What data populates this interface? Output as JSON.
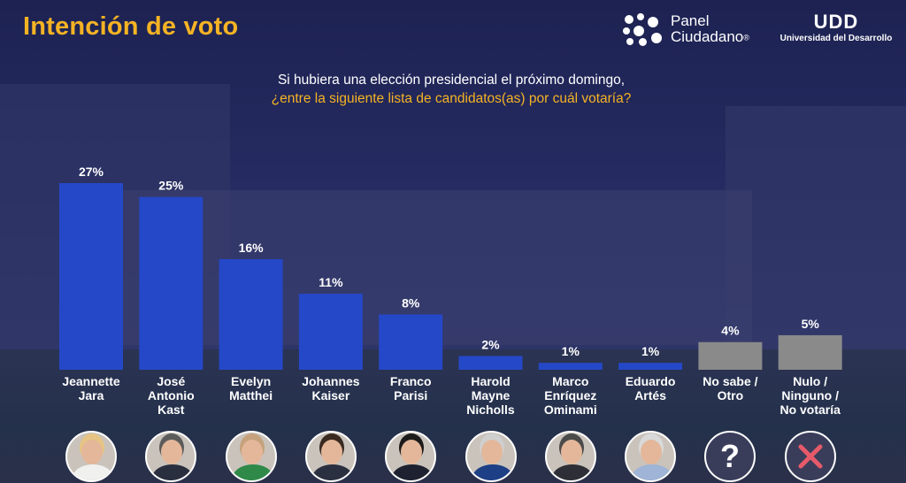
{
  "header": {
    "title": "Intención de voto",
    "panel_logo_line1": "Panel",
    "panel_logo_line2": "Ciudadano",
    "panel_logo_mark": "®",
    "udd_logo_mark": "UDD",
    "udd_logo_name": "Universidad del Desarrollo"
  },
  "question": {
    "line1": "Si hubiera una elección presidencial el próximo domingo,",
    "line2": "¿entre la siguiente lista de candidatos(as) por cuál votaría?"
  },
  "colors": {
    "title": "#f5b324",
    "bar_candidate": "#2548c8",
    "bar_other": "#8a8a8a",
    "question_highlight": "#f5b324"
  },
  "avatars": [
    {
      "name": "avatar-jeannette-jara",
      "icon": "person-photo",
      "shirt": "#f0f0ee",
      "hair": "#e6c483"
    },
    {
      "name": "avatar-jose-antonio-kast",
      "icon": "person-photo",
      "shirt": "#2a2f3f",
      "hair": "#5b5b5b"
    },
    {
      "name": "avatar-evelyn-matthei",
      "icon": "person-photo",
      "shirt": "#2f8a4a",
      "hair": "#c5a27d"
    },
    {
      "name": "avatar-johannes-kaiser",
      "icon": "person-photo",
      "shirt": "#2b3040",
      "hair": "#3a2a22"
    },
    {
      "name": "avatar-franco-parisi",
      "icon": "person-photo",
      "shirt": "#1e2230",
      "hair": "#1c1a1a"
    },
    {
      "name": "avatar-harold-mayne-nicholls",
      "icon": "person-photo",
      "shirt": "#1d3f86",
      "hair": "#cfcfcf"
    },
    {
      "name": "avatar-marco-enriquez-ominami",
      "icon": "person-photo",
      "shirt": "#2e2f36",
      "hair": "#4a4a4a"
    },
    {
      "name": "avatar-eduardo-artes",
      "icon": "person-photo",
      "shirt": "#9fb4d6",
      "hair": "#d9d9d9"
    },
    {
      "name": "question-mark-icon",
      "icon": "question-mark",
      "symbol": "?"
    },
    {
      "name": "x-mark-icon",
      "icon": "x-mark"
    }
  ],
  "chart_data": {
    "type": "bar",
    "title": "Intención de voto",
    "ylim": [
      0,
      27
    ],
    "grid": false,
    "categories": [
      "Jeannette Jara",
      "José Antonio Kast",
      "Evelyn Matthei",
      "Johannes Kaiser",
      "Franco Parisi",
      "Harold Mayne Nicholls",
      "Marco Enríquez Ominami",
      "Eduardo Artés",
      "No sabe / Otro",
      "Nulo / Ninguno / No votaría"
    ],
    "category_lines": [
      [
        "Jeannette",
        "Jara"
      ],
      [
        "José",
        "Antonio",
        "Kast"
      ],
      [
        "Evelyn",
        "Matthei"
      ],
      [
        "Johannes",
        "Kaiser"
      ],
      [
        "Franco",
        "Parisi"
      ],
      [
        "Harold",
        "Mayne",
        "Nicholls"
      ],
      [
        "Marco",
        "Enríquez",
        "Ominami"
      ],
      [
        "Eduardo",
        "Artés"
      ],
      [
        "No sabe /",
        "Otro"
      ],
      [
        "Nulo /",
        "Ninguno /",
        "No votaría"
      ]
    ],
    "values": [
      27,
      25,
      16,
      11,
      8,
      2,
      1,
      1,
      4,
      5
    ],
    "value_labels": [
      "27%",
      "25%",
      "16%",
      "11%",
      "8%",
      "2%",
      "1%",
      "1%",
      "4%",
      "5%"
    ],
    "bar_groups": [
      "candidate",
      "candidate",
      "candidate",
      "candidate",
      "candidate",
      "candidate",
      "candidate",
      "candidate",
      "other",
      "other"
    ]
  }
}
